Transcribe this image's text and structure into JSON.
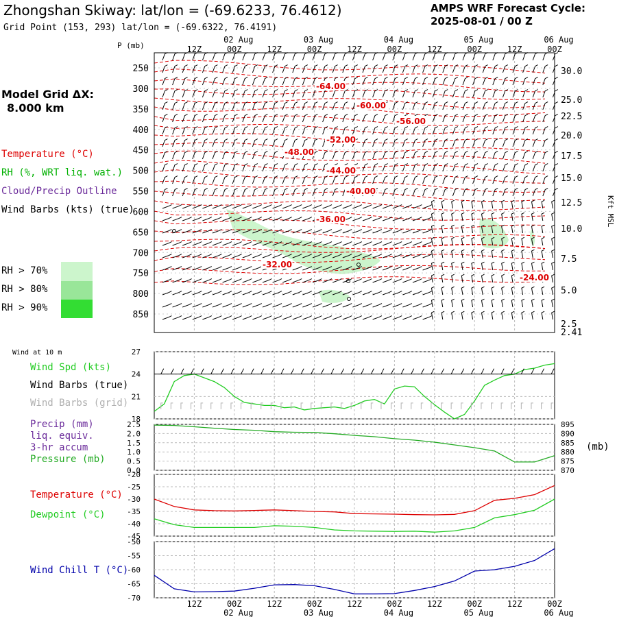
{
  "header": {
    "title": "Zhongshan Skiway:  lat/lon = (-69.6233, 76.4612)",
    "grid_point": "Grid Point (153, 293) lat/lon = (-69.6322, 76.4191)",
    "cycle_line1": "AMPS WRF Forecast Cycle:",
    "cycle_line2": "2025-08-01 / 00  Z"
  },
  "left_legend": {
    "model_grid_label": "Model Grid ΔX:",
    "model_grid_value": "8.000 km",
    "temperature": "Temperature (°C)",
    "rh": "RH (%, WRT liq. wat.)",
    "cloud": "Cloud/Precip Outline",
    "wind_barbs": "Wind Barbs (kts) (true)",
    "rh70": "RH > 70%",
    "rh80": "RH > 80%",
    "rh90": "RH > 90%",
    "wind10m": "Wind at 10 m",
    "wind_spd": "Wind Spd (kts)",
    "wind_barbs_true": "Wind Barbs (true)",
    "wind_barbs_grid": "Wind Barbs (grid)",
    "precip1": "Precip (mm)",
    "precip2": "liq. equiv.",
    "precip3": "3-hr accum",
    "pressure": "Pressure (mb)",
    "temp2": "Temperature (°C)",
    "dewpoint": "Dewpoint (°C)",
    "windchill": "Wind Chill T (°C)"
  },
  "axis_labels": {
    "p_mb": "P (mb)",
    "kft": "Kft MSL",
    "mb_right": "(mb)"
  },
  "colors": {
    "temperature": "#dd0000",
    "rh": "#00b000",
    "cloud": "#6a2a9a",
    "wind_spd": "#22cc22",
    "grid_barbs": "#b0b0b0",
    "windchill": "#0000aa",
    "rh70": "#ccf5cc",
    "rh80": "#99e699",
    "rh90": "#33dd33"
  },
  "chart_data": [
    {
      "type": "line",
      "panel": "upper-air",
      "time_ticks_top": [
        "12Z",
        "00Z",
        "12Z",
        "00Z",
        "12Z",
        "00Z",
        "12Z",
        "00Z",
        "12Z",
        "00Z"
      ],
      "date_ticks_top": [
        "02 Aug",
        "03 Aug",
        "04 Aug",
        "05 Aug",
        "06 Aug"
      ],
      "pressure_ticks": [
        250,
        300,
        350,
        400,
        450,
        500,
        550,
        600,
        650,
        700,
        750,
        800,
        850
      ],
      "height_ticks_kft": [
        "30.0",
        "25.0",
        "22.5",
        "20.0",
        "17.5",
        "15.0",
        "12.5",
        "10.0",
        "7.5",
        "5.0",
        "2.5",
        "2.41"
      ],
      "temperature_contour_labels": [
        "-64.00",
        "-60.00",
        "-56.00",
        "-52.00",
        "-48.00",
        "-44.00",
        "-40.00",
        "-36.00",
        "-32.00",
        "-24.00"
      ]
    },
    {
      "type": "line",
      "panel": "wind-speed",
      "ylim": [
        18,
        27
      ],
      "y_ticks": [
        "27",
        "24",
        "21",
        "18"
      ],
      "series": [
        {
          "name": "Wind Spd (kts)",
          "x": [
            0,
            3,
            6,
            9,
            12,
            15,
            18,
            21,
            24,
            27,
            30,
            33,
            36,
            39,
            42,
            45,
            48,
            51,
            54,
            57,
            60,
            63,
            66,
            69,
            72,
            75,
            78,
            81,
            84,
            87,
            90,
            93,
            96,
            99,
            102,
            105,
            108,
            111,
            114,
            117,
            120
          ],
          "values": [
            19.0,
            20.0,
            23.0,
            23.8,
            24.0,
            23.5,
            23.0,
            22.2,
            21.0,
            20.2,
            20.0,
            19.8,
            19.8,
            19.5,
            19.6,
            19.2,
            19.4,
            19.5,
            19.6,
            19.4,
            19.8,
            20.4,
            20.6,
            20.0,
            22.0,
            22.4,
            22.3,
            21.0,
            19.9,
            18.9,
            18.0,
            18.6,
            20.4,
            22.5,
            23.2,
            23.8,
            24.0,
            24.6,
            24.8,
            25.2,
            25.4
          ]
        }
      ]
    },
    {
      "type": "line",
      "panel": "precip-pressure",
      "precip_ticks": [
        "2.5",
        "2.0",
        "1.5",
        "1.0",
        "0.5",
        "0.0"
      ],
      "pressure_ticks": [
        "895",
        "890",
        "885",
        "880",
        "875",
        "870"
      ],
      "series": [
        {
          "name": "Pressure (mb)",
          "x": [
            0,
            6,
            12,
            18,
            24,
            30,
            36,
            42,
            48,
            54,
            60,
            66,
            72,
            78,
            84,
            90,
            96,
            102,
            108,
            114,
            120
          ],
          "values": [
            894.6,
            894.4,
            893.7,
            892.9,
            892.2,
            891.8,
            891.0,
            890.7,
            890.6,
            889.9,
            889.0,
            888.3,
            887.2,
            886.4,
            885.3,
            883.8,
            882.3,
            880.5,
            874.5,
            874.5,
            878.0
          ]
        }
      ]
    },
    {
      "type": "line",
      "panel": "temperature",
      "ylim": [
        -45,
        -20
      ],
      "y_ticks": [
        "-20",
        "-25",
        "-30",
        "-35",
        "-40",
        "-45"
      ],
      "series": [
        {
          "name": "Temperature (°C)",
          "x": [
            0,
            6,
            12,
            18,
            24,
            30,
            36,
            42,
            48,
            54,
            60,
            66,
            72,
            78,
            84,
            90,
            96,
            102,
            108,
            114,
            120
          ],
          "values": [
            -30.0,
            -33.0,
            -34.4,
            -34.7,
            -34.8,
            -34.6,
            -34.4,
            -34.7,
            -35.0,
            -35.2,
            -35.9,
            -36.0,
            -36.1,
            -36.3,
            -36.4,
            -36.2,
            -34.7,
            -30.5,
            -29.7,
            -28.2,
            -24.5
          ]
        },
        {
          "name": "Dewpoint (°C)",
          "x": [
            0,
            6,
            12,
            18,
            24,
            30,
            36,
            42,
            48,
            54,
            60,
            66,
            72,
            78,
            84,
            90,
            96,
            102,
            108,
            114,
            120
          ],
          "values": [
            -38.0,
            -40.4,
            -41.5,
            -41.5,
            -41.5,
            -41.5,
            -40.8,
            -41.0,
            -41.5,
            -42.5,
            -42.9,
            -43.0,
            -43.1,
            -43.0,
            -43.4,
            -42.9,
            -41.5,
            -37.6,
            -36.3,
            -34.5,
            -30.0
          ]
        }
      ]
    },
    {
      "type": "line",
      "panel": "wind-chill",
      "ylim": [
        -70,
        -50
      ],
      "y_ticks": [
        "-50",
        "-55",
        "-60",
        "-65",
        "-70"
      ],
      "series": [
        {
          "name": "Wind Chill T (°C)",
          "x": [
            0,
            6,
            12,
            18,
            24,
            30,
            36,
            42,
            48,
            54,
            60,
            66,
            72,
            78,
            84,
            90,
            96,
            102,
            108,
            114,
            120
          ],
          "values": [
            -62.0,
            -66.8,
            -67.9,
            -67.8,
            -67.6,
            -66.6,
            -65.4,
            -65.3,
            -65.7,
            -67.0,
            -68.6,
            -68.6,
            -68.5,
            -67.4,
            -66.0,
            -64.0,
            -60.5,
            -60.0,
            -58.8,
            -56.7,
            -52.5
          ]
        }
      ]
    }
  ],
  "bottom_axis": {
    "time_ticks": [
      "12Z",
      "00Z",
      "12Z",
      "00Z",
      "12Z",
      "00Z",
      "12Z",
      "00Z",
      "12Z",
      "00Z"
    ],
    "date_ticks": [
      "02 Aug",
      "03 Aug",
      "04 Aug",
      "05 Aug",
      "06 Aug"
    ]
  }
}
